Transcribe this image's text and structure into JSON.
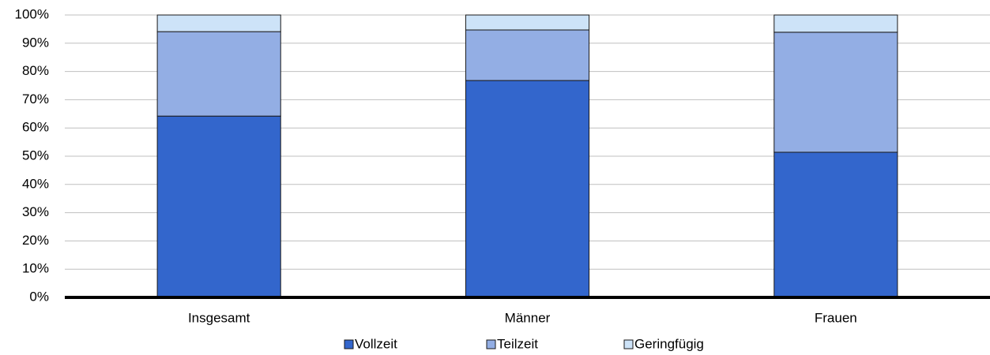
{
  "chart_data": {
    "type": "stacked_bar",
    "categories": [
      "Insgesamt",
      "Männer",
      "Frauen"
    ],
    "series": [
      {
        "name": "Vollzeit",
        "color": "#3366cc",
        "values": [
          64.2,
          76.8,
          51.4
        ]
      },
      {
        "name": "Teilzeit",
        "color": "#93aee4",
        "values": [
          29.9,
          17.9,
          42.5
        ]
      },
      {
        "name": "Geringfügig",
        "color": "#cde3f8",
        "values": [
          5.9,
          5.3,
          6.1
        ]
      }
    ],
    "ylim": [
      0,
      100
    ],
    "yticks": [
      {
        "value": 0,
        "label": "0%"
      },
      {
        "value": 10,
        "label": "10%"
      },
      {
        "value": 20,
        "label": "20%"
      },
      {
        "value": 30,
        "label": "30%"
      },
      {
        "value": 40,
        "label": "40%"
      },
      {
        "value": 50,
        "label": "50%"
      },
      {
        "value": 60,
        "label": "60%"
      },
      {
        "value": 70,
        "label": "70%"
      },
      {
        "value": 80,
        "label": "80%"
      },
      {
        "value": 90,
        "label": "90%"
      },
      {
        "value": 100,
        "label": "100%"
      }
    ],
    "grid": true,
    "legend": "bottom"
  }
}
